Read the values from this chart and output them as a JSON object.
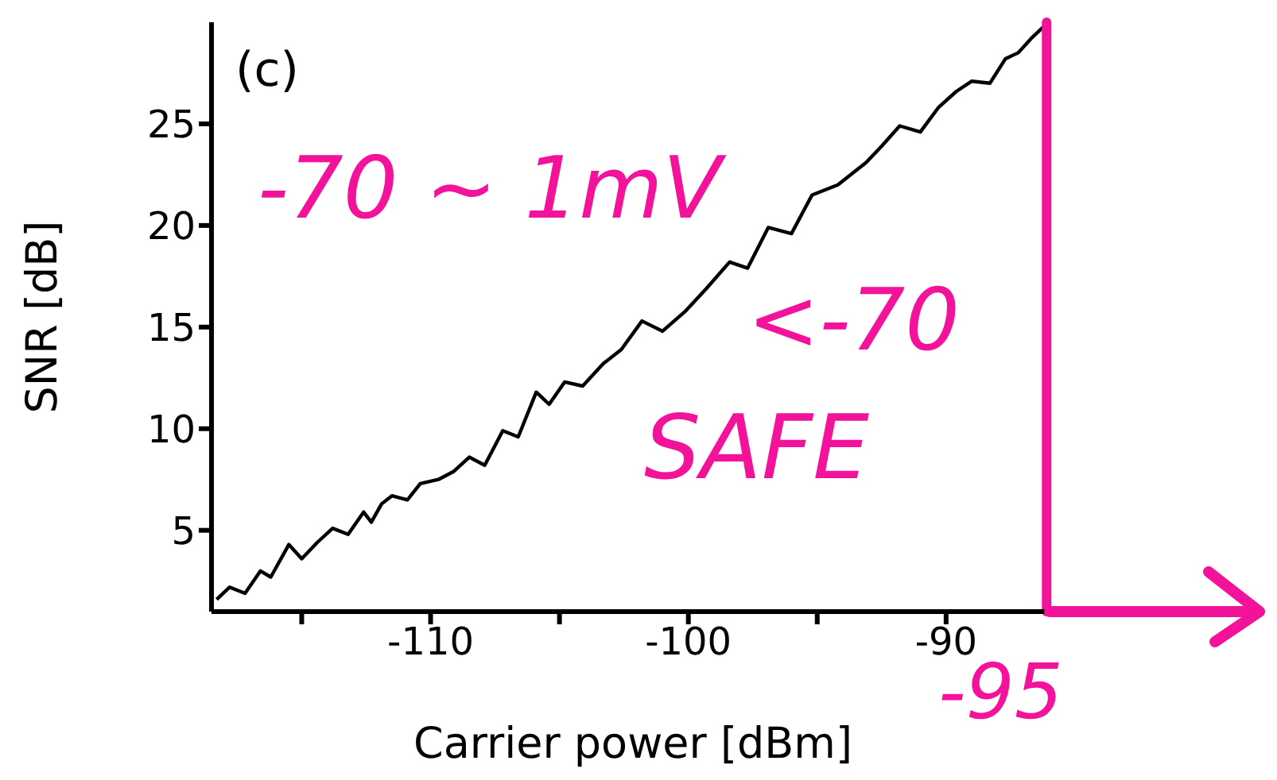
{
  "chart_data": {
    "type": "line",
    "xlabel": "Carrier power [dBm]",
    "ylabel": "SNR [dB]",
    "xlim": [
      -118.5,
      -85.8
    ],
    "ylim": [
      1,
      30
    ],
    "xticks": [
      {
        "value": -115,
        "label": null
      },
      -110,
      {
        "value": -105,
        "label": null
      },
      -100,
      {
        "value": -95,
        "label": null
      },
      -90
    ],
    "yticks": [
      5,
      10,
      15,
      20,
      25
    ],
    "grid": false,
    "legend": false,
    "marker": "none",
    "line_style": "solid",
    "series": [
      {
        "color": "#000000",
        "x": [
          -118.3,
          -117.8,
          -117.2,
          -116.6,
          -116.2,
          -115.5,
          -115.0,
          -114.4,
          -113.8,
          -113.2,
          -112.6,
          -112.3,
          -111.9,
          -111.5,
          -110.9,
          -110.4,
          -109.7,
          -109.1,
          -108.5,
          -107.9,
          -107.2,
          -106.6,
          -105.9,
          -105.4,
          -104.8,
          -104.1,
          -103.3,
          -102.6,
          -101.8,
          -101.0,
          -100.1,
          -99.3,
          -98.4,
          -97.7,
          -96.9,
          -96.0,
          -95.2,
          -94.2,
          -93.1,
          -92.5,
          -91.8,
          -91.0,
          -90.3,
          -89.6,
          -89.0,
          -88.3,
          -87.7,
          -87.2,
          -86.7,
          -86.2
        ],
        "values": [
          1.6,
          2.2,
          1.9,
          3.0,
          2.7,
          4.3,
          3.6,
          4.4,
          5.1,
          4.8,
          5.9,
          5.4,
          6.3,
          6.7,
          6.5,
          7.3,
          7.5,
          7.9,
          8.6,
          8.2,
          9.9,
          9.6,
          11.8,
          11.2,
          12.3,
          12.1,
          13.2,
          13.9,
          15.3,
          14.8,
          15.8,
          16.9,
          18.2,
          17.9,
          19.9,
          19.6,
          21.5,
          22.0,
          23.1,
          23.9,
          24.9,
          24.6,
          25.8,
          26.6,
          27.1,
          27.0,
          28.2,
          28.5,
          29.2,
          29.8
        ]
      }
    ],
    "ref_lines": [
      {
        "axis": "x",
        "value": -86.1,
        "color": "#f2139a"
      }
    ],
    "annotations": [
      "(c)",
      "-70 ~ 1mV",
      "<-70",
      "SAFE",
      "-95"
    ]
  }
}
